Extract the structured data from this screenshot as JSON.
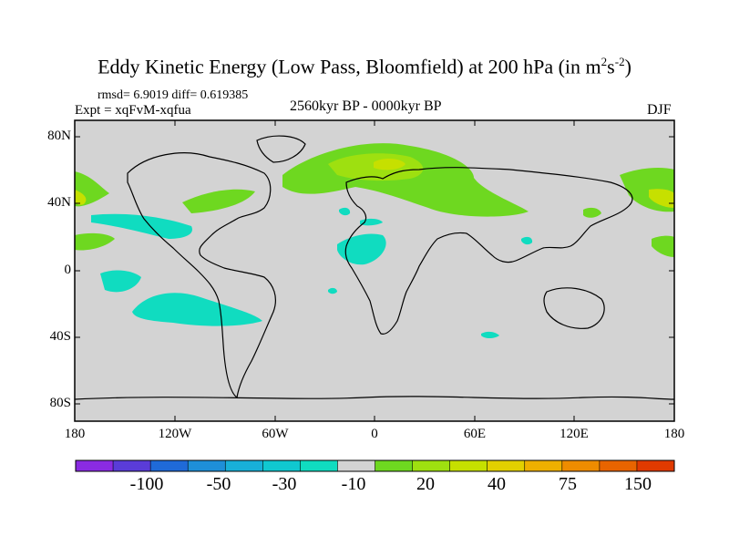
{
  "title": {
    "main": "Eddy Kinetic Energy (Low Pass, Bloomfield) at 200 hPa (in m",
    "sup1": "2",
    "mid": "s",
    "sup2": "-2",
    "close": ")"
  },
  "stats": "rmsd= 6.9019 diff= 0.619385",
  "experiment": "Expt = xqFvM-xqfua",
  "period": "2560kyr BP - 0000kyr BP",
  "season": "DJF",
  "map": {
    "background_color": "#d3d3d3",
    "lat_ticks": [
      "80N",
      "40N",
      "0",
      "40S",
      "80S"
    ],
    "lon_ticks": [
      "180",
      "120W",
      "60W",
      "0",
      "60E",
      "120E",
      "180"
    ]
  },
  "colorbar": {
    "colors": [
      "#8a2be2",
      "#5a3cd8",
      "#1f6ad8",
      "#1e8fd8",
      "#18b0d8",
      "#10c8d0",
      "#10dcc0",
      "#d3d3d3",
      "#6ed820",
      "#9ee010",
      "#c6e000",
      "#e2d000",
      "#eeb000",
      "#ee8c00",
      "#e86400",
      "#e03a00"
    ],
    "labels": [
      "-100",
      "-50",
      "-30",
      "-10",
      "20",
      "40",
      "75",
      "150"
    ]
  }
}
